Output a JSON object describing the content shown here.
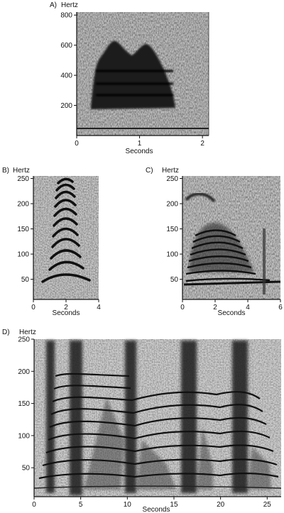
{
  "chart_data": [
    {
      "type": "heatmap",
      "panel_label": "A)",
      "ylabel": "Hertz",
      "xlabel": "Seconds",
      "xlim": [
        0,
        2.1
      ],
      "ylim": [
        0,
        820
      ],
      "x_ticks": [
        0,
        1,
        2
      ],
      "y_ticks": [
        200,
        400,
        600,
        800
      ],
      "grid": false,
      "legend": "none"
    },
    {
      "type": "heatmap",
      "panel_label": "B)",
      "ylabel": "Hertz",
      "xlabel": "Seconds",
      "xlim": [
        0,
        4
      ],
      "ylim": [
        10,
        255
      ],
      "x_ticks": [
        0,
        2,
        4
      ],
      "y_ticks": [
        50,
        100,
        150,
        200,
        250
      ],
      "grid": false,
      "legend": "none"
    },
    {
      "type": "heatmap",
      "panel_label": "C)",
      "ylabel": "Hertz",
      "xlabel": "Seconds",
      "xlim": [
        0,
        6
      ],
      "ylim": [
        10,
        255
      ],
      "x_ticks": [
        0,
        2,
        4,
        6
      ],
      "y_ticks": [
        50,
        100,
        150,
        200,
        250
      ],
      "grid": false,
      "legend": "none"
    },
    {
      "type": "heatmap",
      "panel_label": "D)",
      "ylabel": "Hertz",
      "xlabel": "Seconds",
      "xlim": [
        0,
        26.5
      ],
      "ylim": [
        5,
        250
      ],
      "x_ticks": [
        0,
        5,
        10,
        15,
        20,
        25
      ],
      "y_ticks": [
        50,
        100,
        150,
        200,
        250
      ],
      "grid": false,
      "legend": "none"
    }
  ]
}
